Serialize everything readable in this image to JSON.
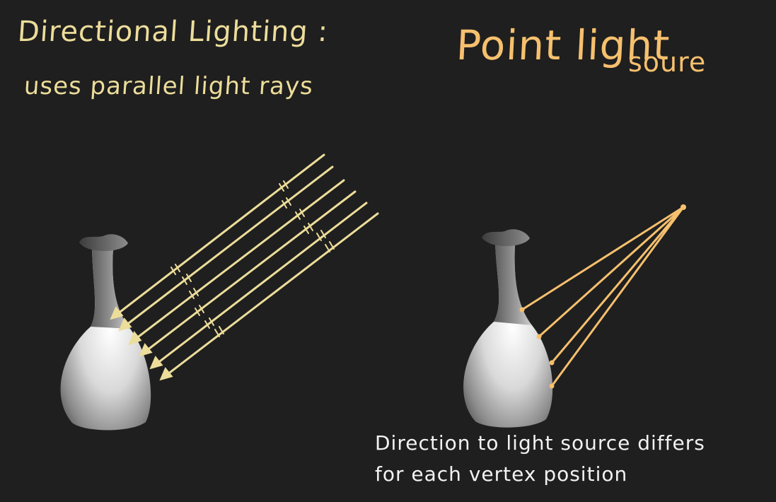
{
  "left_panel": {
    "title": "Directional Lighting :",
    "subtitle": "uses parallel light rays",
    "ray_color": "#ecdd9a"
  },
  "right_panel": {
    "title_part1": "Point light",
    "title_part2": "soure",
    "caption_line1": "Direction to light source differs",
    "caption_line2": "for each vertex position",
    "ray_color": "#f6c06e"
  }
}
